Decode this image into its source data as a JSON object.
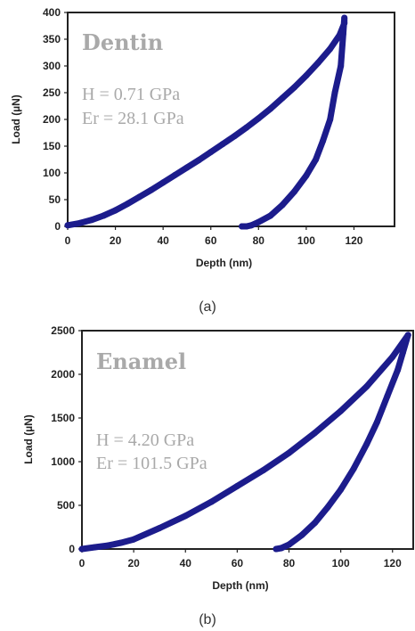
{
  "chart_data": [
    {
      "type": "line",
      "caption": "(a)",
      "xlabel": "Depth (nm)",
      "ylabel": "Load (µN)",
      "xlim": [
        0,
        137
      ],
      "ylim": [
        0,
        400
      ],
      "xticks": [
        0,
        20,
        40,
        60,
        80,
        100,
        120
      ],
      "yticks": [
        0,
        50,
        100,
        150,
        200,
        250,
        300,
        350,
        400
      ],
      "xtick_labels": [
        "0",
        "20",
        "40",
        "60",
        "80",
        "100",
        "120"
      ],
      "ytick_labels": [
        "0",
        "50",
        "100",
        "150",
        "200",
        "250",
        "300",
        "350",
        "400"
      ],
      "grid": false,
      "series_color": "#1c1c8c",
      "inset": {
        "title": "Dentin",
        "line1": "H = 0.71 GPa",
        "line2": "Er = 28.1 GPa"
      },
      "series": [
        {
          "x": [
            0,
            5,
            10,
            15,
            20,
            25,
            30,
            35,
            40,
            45,
            50,
            55,
            60,
            65,
            70,
            75,
            80,
            85,
            90,
            95,
            100,
            105,
            110,
            114,
            116,
            116,
            115.5,
            114.5,
            112,
            110,
            107,
            104,
            100,
            95,
            90,
            85,
            80,
            77,
            75,
            73
          ],
          "y": [
            2,
            6,
            12,
            20,
            30,
            42,
            55,
            68,
            82,
            96,
            110,
            124,
            139,
            154,
            169,
            185,
            202,
            220,
            240,
            260,
            282,
            306,
            332,
            358,
            380,
            390,
            360,
            300,
            250,
            200,
            160,
            125,
            95,
            65,
            40,
            20,
            8,
            2,
            0,
            0
          ]
        }
      ]
    },
    {
      "type": "line",
      "caption": "(b)",
      "xlabel": "Depth (nm)",
      "ylabel": "Load (µN)",
      "xlim": [
        0,
        128
      ],
      "ylim": [
        0,
        2500
      ],
      "xticks": [
        0,
        20,
        40,
        60,
        80,
        100,
        120
      ],
      "yticks": [
        0,
        500,
        1000,
        1500,
        2000,
        2500
      ],
      "xtick_labels": [
        "0",
        "20",
        "40",
        "60",
        "80",
        "100",
        "120"
      ],
      "ytick_labels": [
        "0",
        "500",
        "1000",
        "1500",
        "2000",
        "2500"
      ],
      "grid": false,
      "series_color": "#1c1c8c",
      "inset": {
        "title": "Enamel",
        "line1": "H = 4.20 GPa",
        "line2": "Er = 101.5 GPa"
      },
      "series": [
        {
          "x": [
            0,
            5,
            10,
            15,
            20,
            30,
            40,
            50,
            60,
            70,
            80,
            90,
            100,
            110,
            120,
            126,
            126,
            124,
            122,
            118,
            114,
            110,
            105,
            100,
            95,
            90,
            85,
            80,
            77,
            75
          ],
          "y": [
            0,
            20,
            40,
            70,
            110,
            240,
            380,
            540,
            720,
            900,
            1100,
            1330,
            1580,
            1860,
            2200,
            2450,
            2450,
            2250,
            2050,
            1750,
            1450,
            1200,
            920,
            680,
            480,
            300,
            160,
            50,
            10,
            0
          ]
        }
      ]
    }
  ]
}
